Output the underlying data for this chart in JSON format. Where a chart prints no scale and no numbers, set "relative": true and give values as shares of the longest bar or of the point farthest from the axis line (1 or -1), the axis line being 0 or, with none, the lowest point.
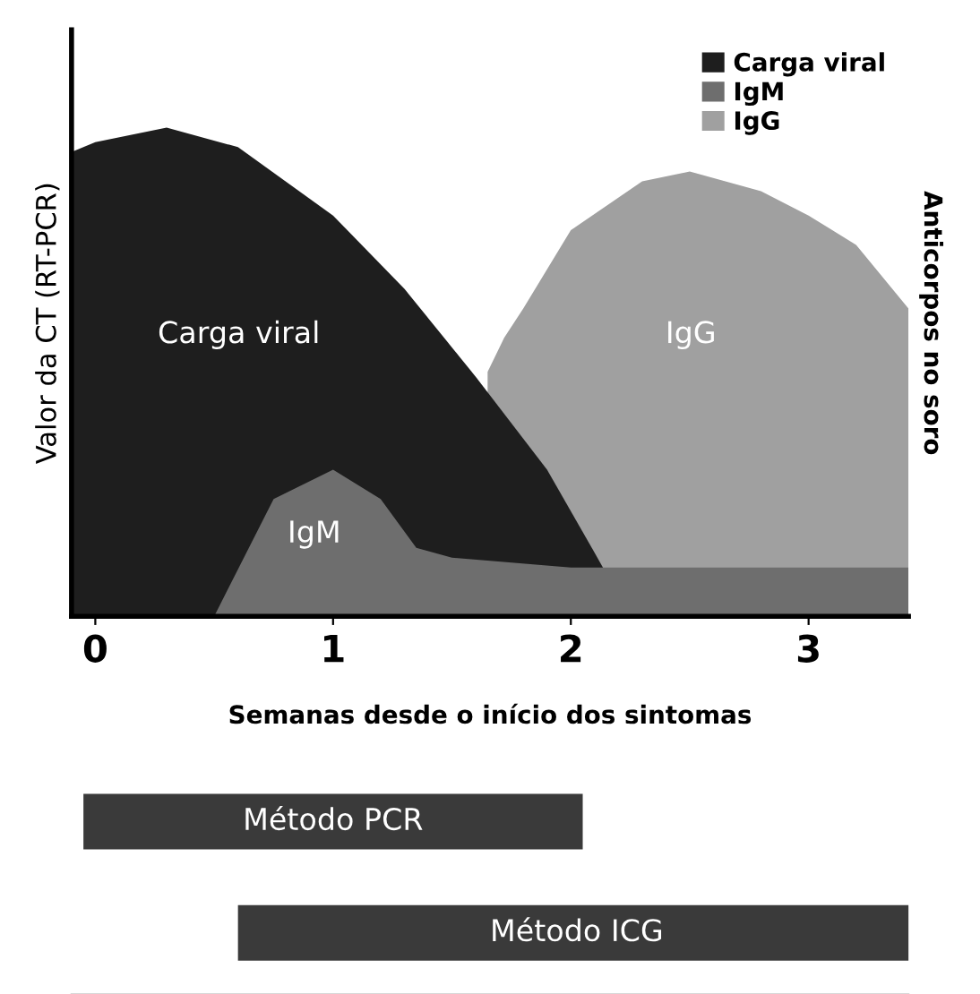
{
  "chart_data": [
    {
      "type": "area",
      "relative": true,
      "xlabel": "Semanas desde o início dos sintomas",
      "ylabel": "Valor da CT (RT-PCR)",
      "y2label": "Anticorpos no soro",
      "xlim": [
        -0.1,
        3.42
      ],
      "xticks": [
        0,
        1,
        2,
        3
      ],
      "legend": "top right",
      "series": [
        {
          "name": "Carga viral",
          "color": "#1e1e1e",
          "x": [
            -0.1,
            0,
            0.3,
            0.6,
            1.0,
            1.3,
            1.6,
            1.9,
            2.1,
            2.25
          ],
          "values": [
            0.95,
            0.97,
            1.0,
            0.96,
            0.82,
            0.67,
            0.49,
            0.3,
            0.13,
            0
          ]
        },
        {
          "name": "IgM",
          "color": "#6e6e6e",
          "x": [
            0.5,
            0.75,
            1.0,
            1.2,
            1.35,
            1.5,
            2.0,
            3.42
          ],
          "values": [
            0,
            0.24,
            0.3,
            0.24,
            0.14,
            0.12,
            0.1,
            0.1
          ]
        },
        {
          "name": "IgG",
          "color": "#a0a0a0",
          "x": [
            1.65,
            1.72,
            1.8,
            2.0,
            2.3,
            2.5,
            2.8,
            3.0,
            3.2,
            3.42
          ],
          "values": [
            0.5,
            0.57,
            0.63,
            0.79,
            0.89,
            0.91,
            0.87,
            0.82,
            0.76,
            0.63
          ]
        }
      ],
      "annotations": [
        "Carga viral",
        "IgM",
        "IgG"
      ]
    },
    {
      "type": "bar",
      "orientation": "horizontal",
      "categories": [
        "Método PCR",
        "Método ICG"
      ],
      "base": [
        -0.05,
        0.6
      ],
      "values": [
        2.1,
        2.85
      ],
      "color": "#3a3a3a",
      "xlim": [
        -0.1,
        3.42
      ],
      "tick_labels": false
    }
  ]
}
